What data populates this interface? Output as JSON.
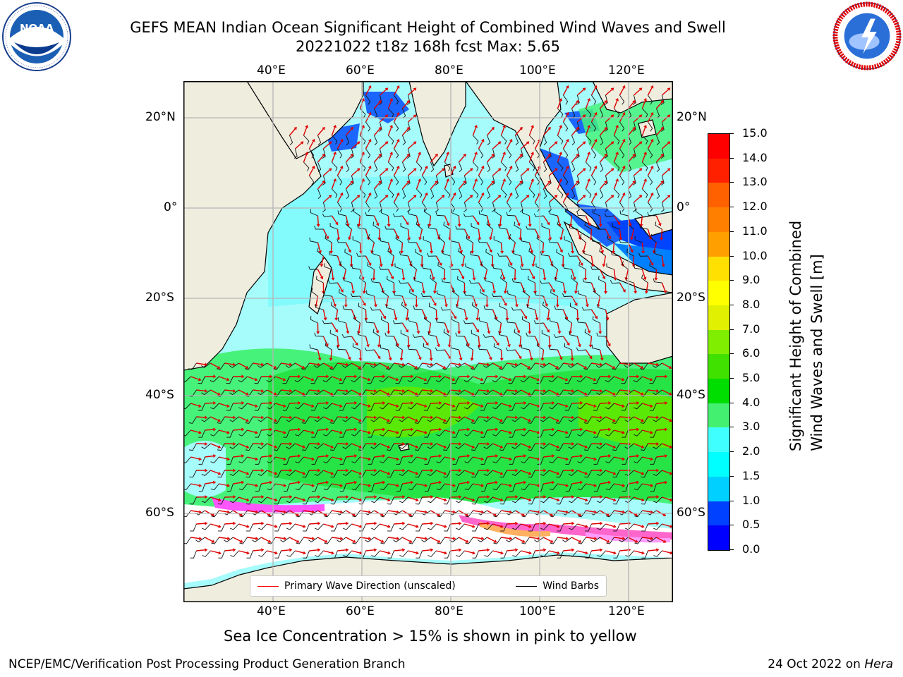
{
  "header": {
    "title_line1": "GEFS MEAN Indian Ocean Significant Height of Combined Wind Waves and Swell",
    "title_line2": "20221022 t18z 168h fcst   Max: 5.65"
  },
  "logos": {
    "left": "noaa-logo",
    "left_text": "NOAA",
    "left_ring_text": "NATIONAL OCEANIC AND ATMOSPHERIC ADMINISTRATION · U.S. DEPARTMENT OF COMMERCE",
    "right": "national-weather-service-logo",
    "right_ring_text": "NATIONAL WEATHER SERVICE"
  },
  "map": {
    "lon_ticks": [
      "40°E",
      "60°E",
      "80°E",
      "100°E",
      "120°E"
    ],
    "lat_ticks": [
      "20°N",
      "0°",
      "20°S",
      "40°S",
      "60°S"
    ],
    "legend": {
      "wave_label": "Primary Wave Direction (unscaled)",
      "wave_color": "#ff0000",
      "barb_label": "Wind Barbs",
      "barb_color": "#000000"
    },
    "colors": {
      "land": "#efedde",
      "ice": "#ffffff",
      "grid": "#b4b4b4"
    }
  },
  "colorbar": {
    "label_line1": "Significant Height of Combined",
    "label_line2": "Wind Waves and Swell [m]",
    "ticks": [
      "15.0",
      "14.0",
      "13.0",
      "12.0",
      "11.0",
      "10.0",
      "9.0",
      "8.0",
      "7.0",
      "6.0",
      "5.0",
      "4.0",
      "3.0",
      "2.0",
      "1.5",
      "1.0",
      "0.5",
      "0.0"
    ],
    "colors_top_to_bottom": [
      "#ff0000",
      "#ff2000",
      "#ff4000",
      "#ff6000",
      "#ff8000",
      "#ffa000",
      "#ffc000",
      "#ffe000",
      "#ffff00",
      "#e0f000",
      "#c0f000",
      "#80ee00",
      "#40e000",
      "#00dd00",
      "#44f070",
      "#a0ffff",
      "#40ffff",
      "#00ffff",
      "#00d0ff",
      "#0080ff",
      "#0040ff",
      "#0000ff"
    ]
  },
  "notes": {
    "ice_note": "Sea Ice Concentration > 15% is shown in pink to yellow"
  },
  "footer": {
    "left": "NCEP/EMC/Verification Post Processing Product Generation Branch",
    "right_prefix": "24 Oct 2022 on ",
    "right_machine": "Hera"
  }
}
